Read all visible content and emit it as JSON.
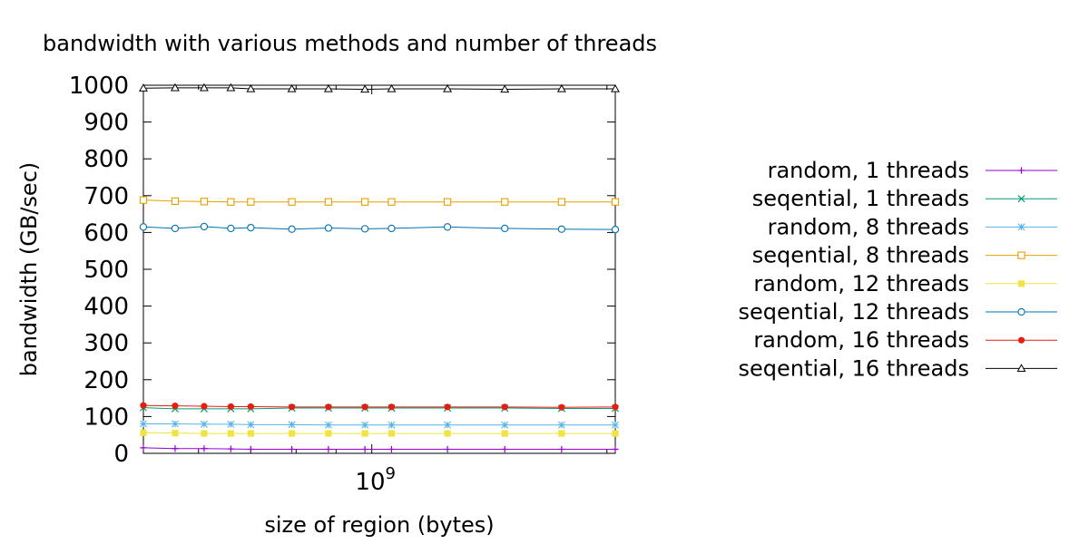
{
  "chart_data": {
    "type": "line",
    "title": "bandwidth with various methods and number of threads",
    "xlabel": "size of region (bytes)",
    "ylabel": "bandwidth (GB/sec)",
    "x_scale": "log",
    "x_tick_labels": [
      {
        "base": "10",
        "exp": "9"
      }
    ],
    "x": [
      510000000,
      560000000,
      610000000,
      660000000,
      700000000,
      790000000,
      880000000,
      980000000,
      1060000000,
      1250000000,
      1480000000,
      1750000000,
      2050000000
    ],
    "ylim": [
      0,
      1000
    ],
    "yticks": [
      0,
      100,
      200,
      300,
      400,
      500,
      600,
      700,
      800,
      900,
      1000
    ],
    "grid": false,
    "legend_position": "right",
    "series": [
      {
        "name": "random, 1 threads",
        "color": "#9400d3",
        "marker": "plus",
        "values": [
          15,
          13,
          13,
          12,
          11,
          11,
          11,
          11,
          11,
          11,
          11,
          11,
          11
        ]
      },
      {
        "name": "seqential, 1 threads",
        "color": "#009e73",
        "marker": "cross",
        "values": [
          124,
          121,
          121,
          121,
          121,
          123,
          123,
          123,
          123,
          123,
          123,
          122,
          122
        ]
      },
      {
        "name": "random, 8 threads",
        "color": "#56b4e9",
        "marker": "star",
        "values": [
          80,
          80,
          79,
          79,
          78,
          78,
          77,
          77,
          77,
          77,
          77,
          77,
          77
        ]
      },
      {
        "name": "seqential, 8 threads",
        "color": "#e69f00",
        "marker": "square-open",
        "values": [
          688,
          685,
          684,
          683,
          683,
          683,
          683,
          683,
          683,
          683,
          683,
          683,
          683
        ]
      },
      {
        "name": "random, 12 threads",
        "color": "#f0e442",
        "marker": "square-filled",
        "values": [
          56,
          55,
          54,
          54,
          54,
          54,
          54,
          54,
          54,
          54,
          54,
          54,
          54
        ]
      },
      {
        "name": "seqential, 12 threads",
        "color": "#0072b2",
        "marker": "circle-open",
        "values": [
          615,
          611,
          616,
          611,
          613,
          609,
          612,
          610,
          611,
          615,
          611,
          609,
          608
        ]
      },
      {
        "name": "random, 16 threads",
        "color": "#e51e10",
        "marker": "circle-filled",
        "values": [
          130,
          129,
          128,
          127,
          127,
          126,
          126,
          126,
          126,
          126,
          126,
          125,
          126
        ]
      },
      {
        "name": "seqential, 16 threads",
        "color": "#000000",
        "marker": "triangle-open",
        "values": [
          992,
          993,
          993,
          993,
          990,
          990,
          990,
          989,
          990,
          990,
          989,
          990,
          990
        ]
      }
    ]
  }
}
